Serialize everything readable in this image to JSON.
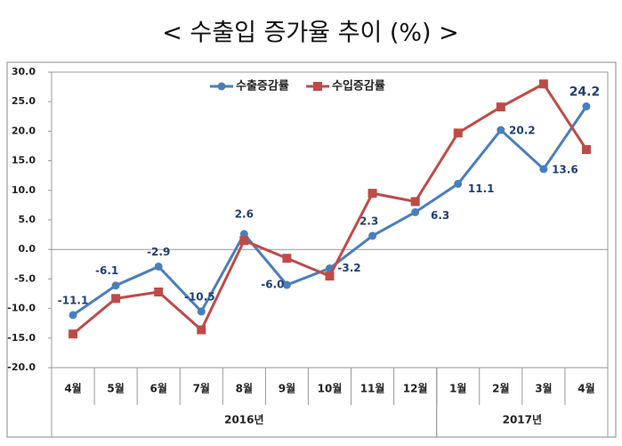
{
  "chart_data": {
    "type": "line",
    "title": "< 수출입 증가율 추이 (%) >",
    "categories": [
      "4월",
      "5월",
      "6월",
      "7월",
      "8월",
      "9월",
      "10월",
      "11월",
      "12월",
      "1월",
      "2월",
      "3월",
      "4월"
    ],
    "x_groups": [
      {
        "label": "2016년",
        "count": 9
      },
      {
        "label": "2017년",
        "count": 4
      }
    ],
    "series": [
      {
        "name": "수출증감률",
        "color": "#4a7ebb",
        "marker": "circle",
        "values": [
          -11.1,
          -6.1,
          -2.9,
          -10.5,
          2.6,
          -6.0,
          -3.2,
          2.3,
          6.3,
          11.1,
          20.2,
          13.6,
          24.2
        ],
        "value_labels": [
          "-11.1",
          "-6.1",
          "-2.9",
          "-10.5",
          "2.6",
          "-6.0",
          "-3.2",
          "2.3",
          "6.3",
          "11.1",
          "20.2",
          "13.6",
          "24.2"
        ]
      },
      {
        "name": "수입증감률",
        "color": "#be4b48",
        "marker": "square",
        "values": [
          -14.3,
          -8.3,
          -7.2,
          -13.6,
          1.5,
          -1.5,
          -4.5,
          9.5,
          8.1,
          19.7,
          24.1,
          28.0,
          16.9
        ]
      }
    ],
    "ylim": [
      -20,
      30
    ],
    "yticks": [
      {
        "value": -20,
        "label": "-20.0"
      },
      {
        "value": -15,
        "label": "-15.0"
      },
      {
        "value": -10,
        "label": "-10.0"
      },
      {
        "value": -5,
        "label": "-5.0"
      },
      {
        "value": 0,
        "label": "0.0"
      },
      {
        "value": 5,
        "label": "5.0"
      },
      {
        "value": 10,
        "label": "10.0"
      },
      {
        "value": 15,
        "label": "15.0"
      },
      {
        "value": 20,
        "label": "20.0"
      },
      {
        "value": 25,
        "label": "25.0"
      },
      {
        "value": 30,
        "label": "30.0"
      }
    ],
    "legend": "top",
    "grid": false
  }
}
